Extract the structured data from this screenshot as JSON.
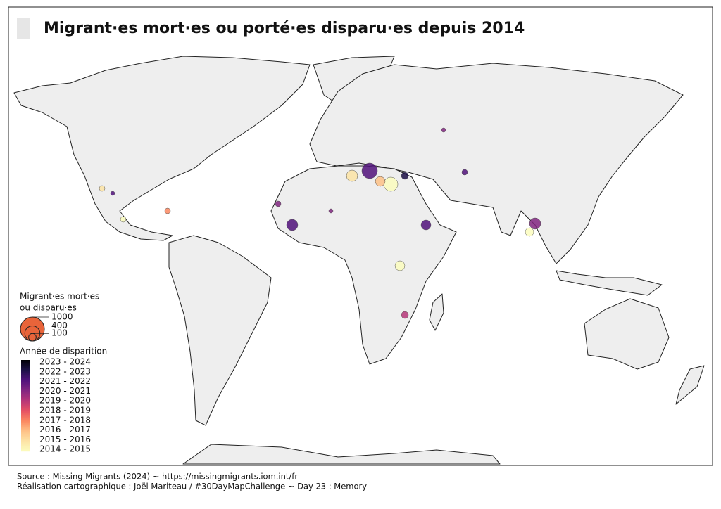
{
  "title": "Migrant·es mort·es ou porté·es disparu·es depuis 2014",
  "legend": {
    "size": {
      "title": [
        "Migrant·es mort·es",
        "ou disparu·es"
      ],
      "values": [
        1000,
        400,
        100
      ],
      "color": "#e8643a"
    },
    "color": {
      "title": "Année de disparition",
      "classes": [
        {
          "label": "2023 - 2024",
          "color": "#000004"
        },
        {
          "label": "2022 - 2023",
          "color": "#1d1147"
        },
        {
          "label": "2021 - 2022",
          "color": "#51127c"
        },
        {
          "label": "2020 - 2021",
          "color": "#822681"
        },
        {
          "label": "2019 - 2020",
          "color": "#b63679"
        },
        {
          "label": "2018 - 2019",
          "color": "#e65164"
        },
        {
          "label": "2017 - 2018",
          "color": "#fb8861"
        },
        {
          "label": "2016 - 2017",
          "color": "#fec287"
        },
        {
          "label": "2015 - 2016",
          "color": "#fde4a6"
        },
        {
          "label": "2014 - 2015",
          "color": "#fcfdbf"
        }
      ]
    }
  },
  "source": [
    "Source : Missing Migrants (2024) ~ https://missingmigrants.iom.int/fr",
    "Réalisation cartographique : Joël Mariteau /  #30DayMapChallenge ~ Day 23 : Memory"
  ]
}
